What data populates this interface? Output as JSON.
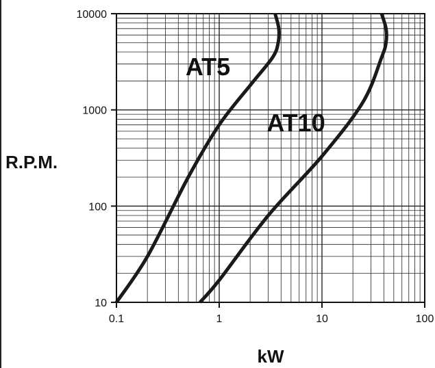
{
  "chart_data": {
    "type": "line",
    "xscale": "log",
    "yscale": "log",
    "xlim": [
      0.1,
      100
    ],
    "ylim": [
      10,
      10000
    ],
    "xticks": [
      "0.1",
      "1",
      "10",
      "100"
    ],
    "yticks": [
      "10",
      "100",
      "1000",
      "10000"
    ],
    "xlabel": "kW",
    "ylabel": "R.P.M.",
    "grid": true,
    "series": [
      {
        "name": "AT5",
        "color": "#1a1a1a",
        "x": [
          0.1,
          0.2,
          0.5,
          1,
          2,
          3.3,
          3.75,
          3.8,
          3.5
        ],
        "y": [
          10,
          30,
          200,
          700,
          1800,
          3500,
          5000,
          7000,
          10000
        ]
      },
      {
        "name": "AT10",
        "color": "#1a1a1a",
        "x": [
          0.65,
          1,
          3,
          10,
          25,
          38,
          42,
          42,
          38
        ],
        "y": [
          10,
          17,
          80,
          330,
          1200,
          3500,
          5000,
          7000,
          10000
        ]
      }
    ],
    "annotations": [
      {
        "text": "AT5",
        "x": 0.47,
        "y": 2300
      },
      {
        "text": "AT10",
        "x": 2.9,
        "y": 600
      }
    ]
  }
}
